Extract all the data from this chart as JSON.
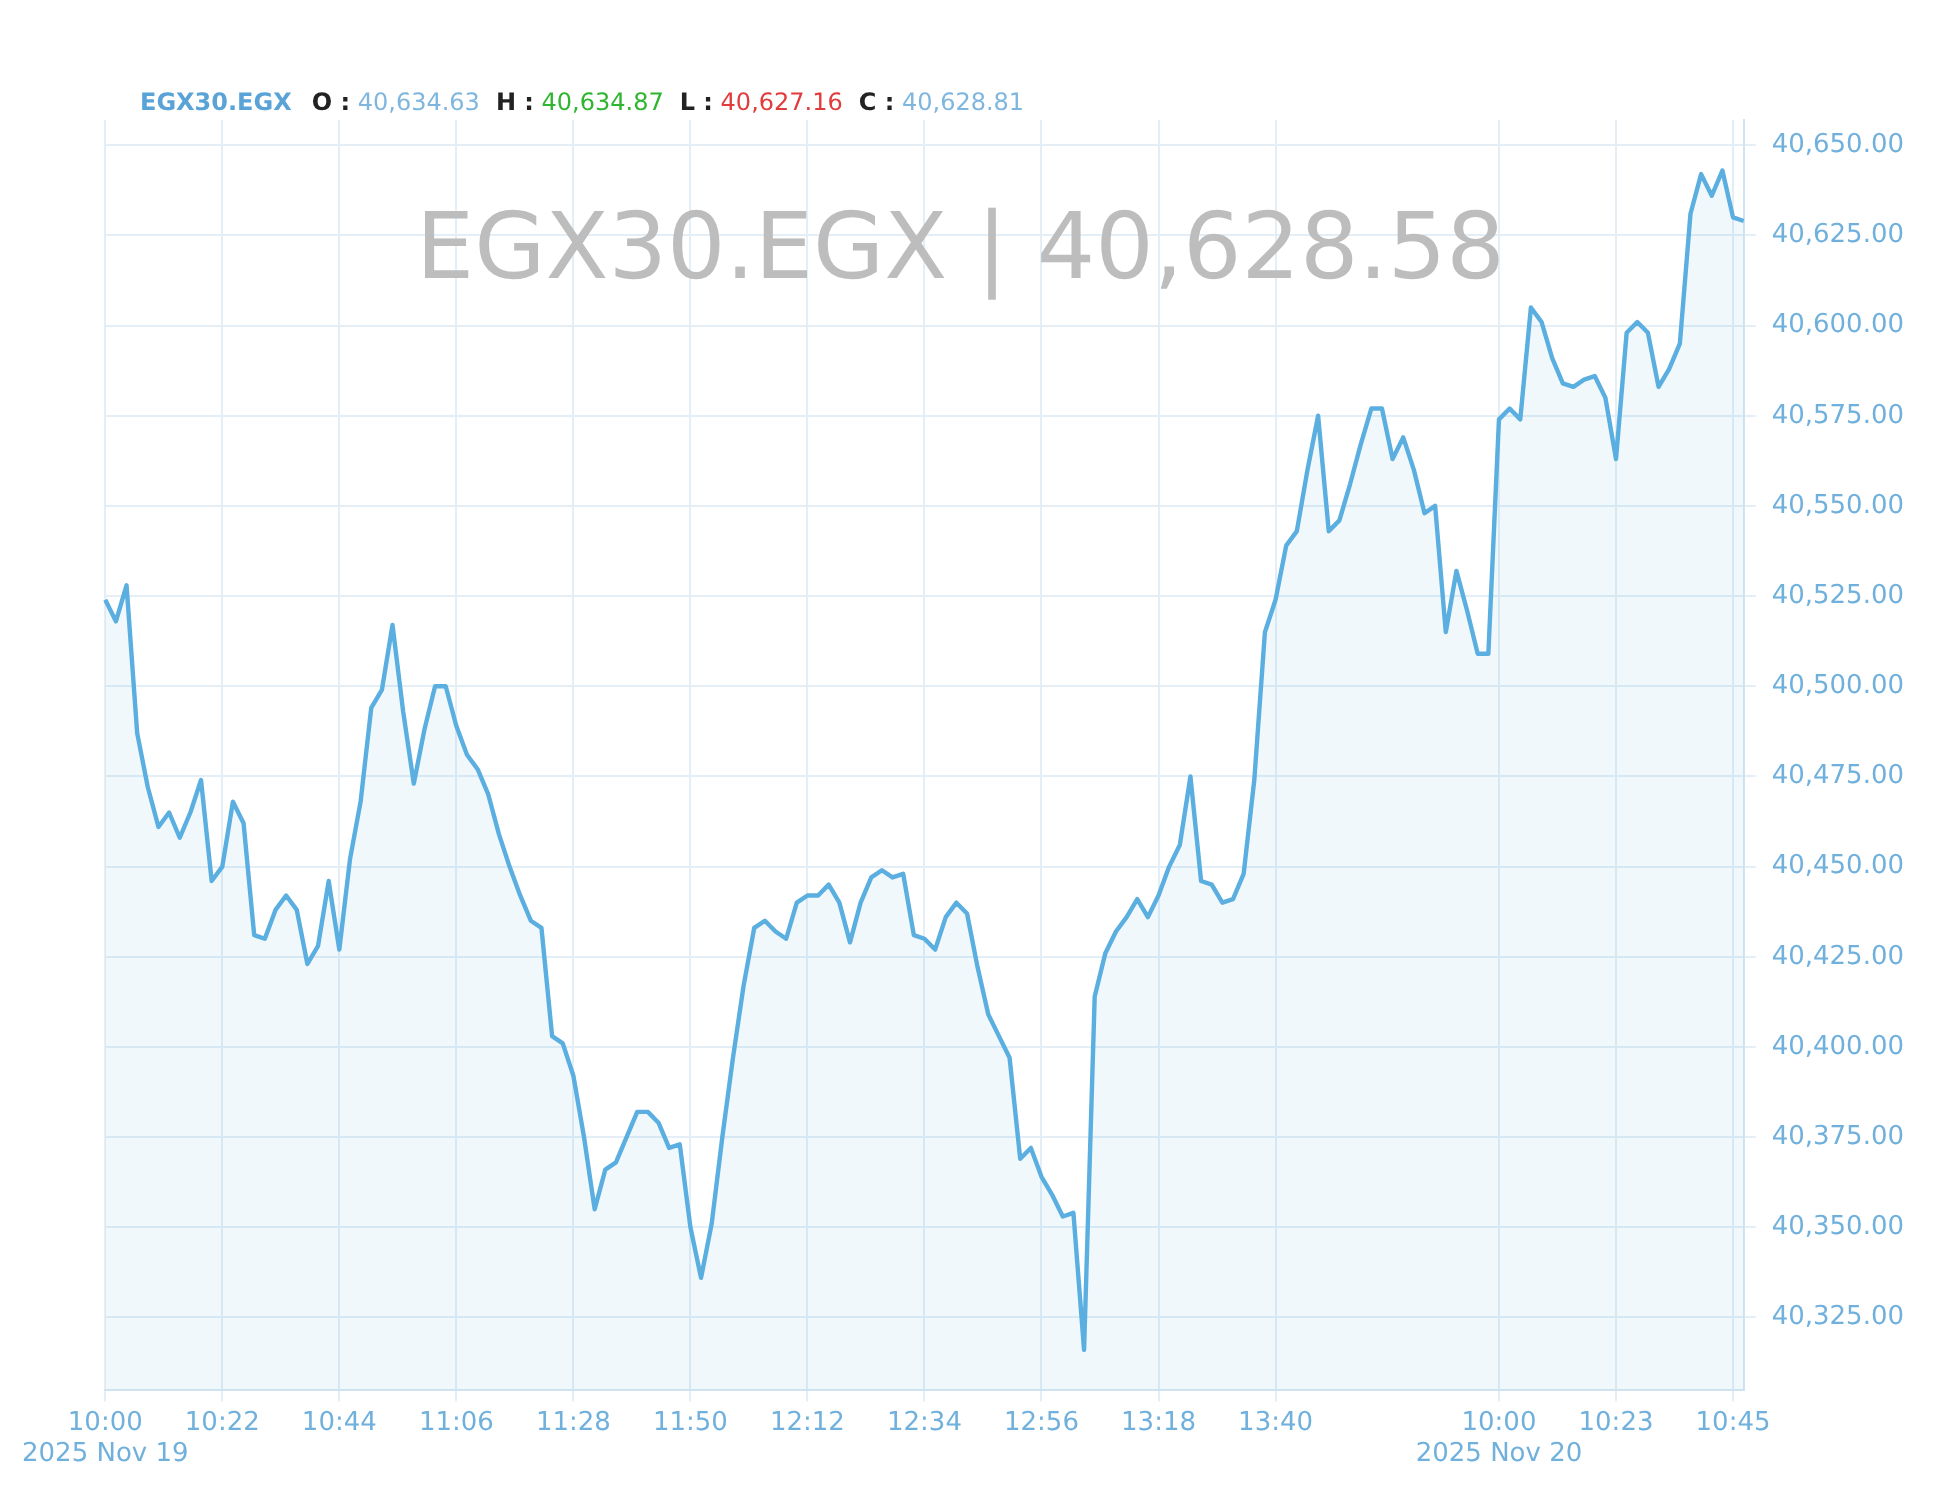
{
  "chart_data": {
    "type": "area",
    "title": "EGX30.EGX",
    "annotations": [
      "O : 40,634.63",
      "H : 40,634.87",
      "L : 40,627.16",
      "C : 40,628.81",
      "EGX30.EGX | 40,628.58"
    ],
    "categories": [
      "10:00\n2025 Nov 19",
      null,
      null,
      null,
      null,
      null,
      null,
      null,
      null,
      null,
      null,
      "10:22",
      null,
      null,
      null,
      null,
      null,
      null,
      null,
      null,
      null,
      null,
      "10:44",
      null,
      null,
      null,
      null,
      null,
      null,
      null,
      null,
      null,
      null,
      "11:06",
      null,
      null,
      null,
      null,
      null,
      null,
      null,
      null,
      null,
      null,
      "11:28",
      null,
      null,
      null,
      null,
      null,
      null,
      null,
      null,
      null,
      null,
      "11:50",
      null,
      null,
      null,
      null,
      null,
      null,
      null,
      null,
      null,
      null,
      "12:12",
      null,
      null,
      null,
      null,
      null,
      null,
      null,
      null,
      null,
      null,
      "12:34",
      null,
      null,
      null,
      null,
      null,
      null,
      null,
      null,
      null,
      null,
      "12:56",
      null,
      null,
      null,
      null,
      null,
      null,
      null,
      null,
      null,
      null,
      "13:18",
      null,
      null,
      null,
      null,
      null,
      null,
      null,
      null,
      null,
      null,
      "13:40",
      null,
      null,
      null,
      null,
      null,
      null,
      null,
      null,
      null,
      null,
      null,
      null,
      null,
      null,
      null,
      null,
      null,
      null,
      null,
      null,
      "10:00\n2025 Nov 20",
      null,
      null,
      null,
      null,
      null,
      null,
      null,
      null,
      null,
      null,
      "10:23",
      null,
      null,
      null,
      null,
      null,
      null,
      null,
      null,
      null,
      null,
      "10:45",
      null
    ],
    "series": [
      {
        "color": "#5aaee0",
        "values": [
          40524,
          40518,
          40528,
          40487,
          40472,
          40461,
          40465,
          40458,
          40465,
          40474,
          40446,
          40450,
          40468,
          40462,
          40431,
          40430,
          40438,
          40442,
          40438,
          40423,
          40428,
          40446,
          40427,
          40452,
          40468,
          40494,
          40499,
          40517,
          40493,
          40473,
          40488,
          40500,
          40500,
          40489,
          40481,
          40477,
          40470,
          40459,
          40450,
          40442,
          40435,
          40433,
          40403,
          40401,
          40392,
          40375,
          40355,
          40366,
          40368,
          40375,
          40382,
          40382,
          40379,
          40372,
          40373,
          40350,
          40336,
          40351,
          40375,
          40397,
          40417,
          40433,
          40435,
          40432,
          40430,
          40440,
          40442,
          40442,
          40445,
          40440,
          40429,
          40440,
          40447,
          40449,
          40447,
          40448,
          40431,
          40430,
          40427,
          40436,
          40440,
          40437,
          40422,
          40409,
          40403,
          40397,
          40369,
          40372,
          40364,
          40359,
          40353,
          40354,
          40316,
          40414,
          40426,
          40432,
          40436,
          40441,
          40436,
          40442,
          40450,
          40456,
          40475,
          40446,
          40445,
          40440,
          40441,
          40448,
          40474,
          40515,
          40524,
          40539,
          40543,
          40560,
          40575,
          40543,
          40546,
          40556,
          40567,
          40577,
          40577,
          40563,
          40569,
          40560,
          40548,
          40550,
          40515,
          40532,
          40521,
          40509,
          40509,
          40574,
          40577,
          40574,
          40605,
          40601,
          40591,
          40584,
          40583,
          40585,
          40586,
          40580,
          40563,
          40598,
          40601,
          40598,
          40583,
          40588,
          40595,
          40631,
          40642,
          40636,
          40643,
          40630,
          40629
        ]
      }
    ],
    "ylim": [
      40305,
      40657
    ],
    "yticks": [
      {
        "value": 40325,
        "label": "40,325.00"
      },
      {
        "value": 40350,
        "label": "40,350.00"
      },
      {
        "value": 40375,
        "label": "40,375.00"
      },
      {
        "value": 40400,
        "label": "40,400.00"
      },
      {
        "value": 40425,
        "label": "40,425.00"
      },
      {
        "value": 40450,
        "label": "40,450.00"
      },
      {
        "value": 40475,
        "label": "40,475.00"
      },
      {
        "value": 40500,
        "label": "40,500.00"
      },
      {
        "value": 40525,
        "label": "40,525.00"
      },
      {
        "value": 40550,
        "label": "40,550.00"
      },
      {
        "value": 40575,
        "label": "40,575.00"
      },
      {
        "value": 40600,
        "label": "40,600.00"
      },
      {
        "value": 40625,
        "label": "40,625.00"
      },
      {
        "value": 40650,
        "label": "40,650.00"
      }
    ],
    "grid": true,
    "legend": false,
    "marker": "none",
    "line_style": "solid"
  }
}
